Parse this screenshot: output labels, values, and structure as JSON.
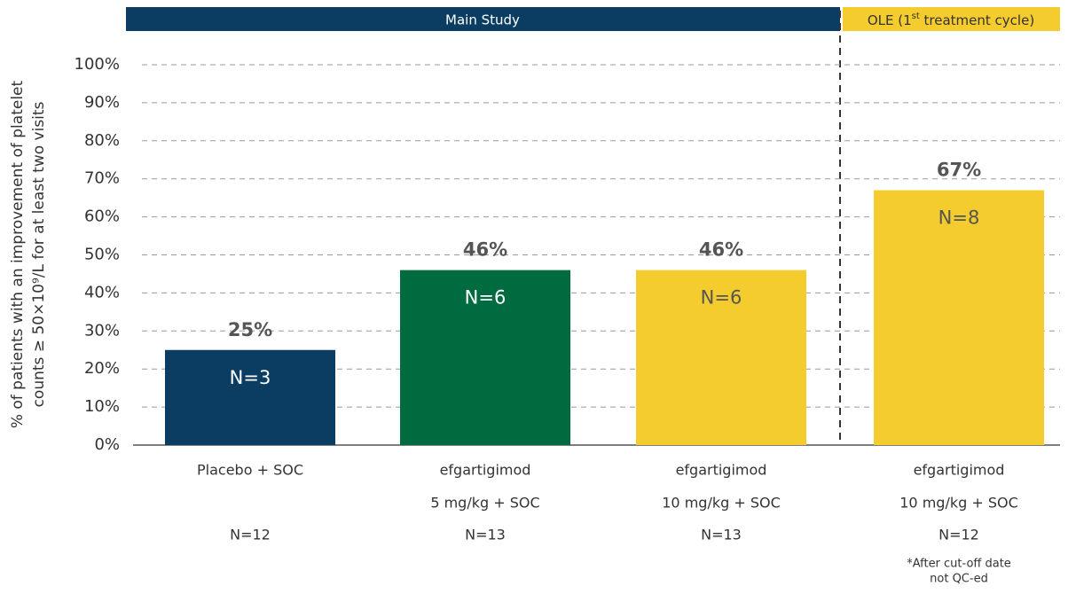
{
  "chart_data": {
    "type": "bar",
    "headers": [
      {
        "text": "Main Study"
      },
      {
        "text": "OLE (1",
        "sup": "st",
        "rest": " treatment cycle)"
      }
    ],
    "header_colors": [
      "#0b3c61",
      "#f5cc2e"
    ],
    "y_label": [
      "% of patients with an improvement of platelet",
      "counts ≥ 50×10⁹/L for at least two visits"
    ],
    "categories": [
      [
        "Placebo + SOC"
      ],
      [
        "efgartigimod",
        "5 mg/kg + SOC"
      ],
      [
        "efgartigimod",
        "10 mg/kg  + SOC"
      ],
      [
        "efgartigimod",
        "10 mg/kg + SOC"
      ]
    ],
    "group_sizes": [
      "N=12",
      "N=13",
      "N=13",
      "N=12"
    ],
    "values": [
      25,
      46,
      46,
      67
    ],
    "value_labels": [
      "25%",
      "46%",
      "46%",
      "67%"
    ],
    "inner_labels": [
      "N=3",
      "N=6",
      "N=6",
      "N=8"
    ],
    "colors": [
      "#0b3c61",
      "#006b3f",
      "#f5cc2e",
      "#f5cc2e"
    ],
    "ylim": [
      0,
      100
    ],
    "yticks": [
      {
        "value": 0,
        "label": "0%"
      },
      {
        "value": 10,
        "label": "10%"
      },
      {
        "value": 20,
        "label": "20%"
      },
      {
        "value": 30,
        "label": "30%"
      },
      {
        "value": 40,
        "label": "40%"
      },
      {
        "value": 50,
        "label": "50%"
      },
      {
        "value": 60,
        "label": "60%"
      },
      {
        "value": 70,
        "label": "70%"
      },
      {
        "value": 80,
        "label": "80%"
      },
      {
        "value": 90,
        "label": "90%"
      },
      {
        "value": 100,
        "label": "100%"
      }
    ],
    "grid": true,
    "footnote": [
      "*After cut-off  date",
      "not QC-ed"
    ]
  }
}
